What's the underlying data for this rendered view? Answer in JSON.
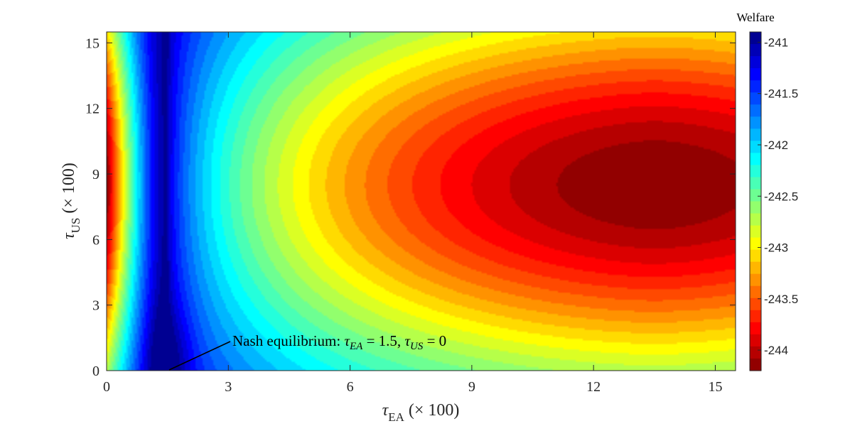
{
  "chart_data": {
    "type": "heatmap",
    "subtype": "filled-contour",
    "title": "",
    "xlabel": "τ",
    "xlabel_sub": "EA",
    "xlabel_suffix": "(× 100)",
    "ylabel": "τ",
    "ylabel_sub": "US",
    "ylabel_suffix": "(× 100)",
    "xlim": [
      0,
      15.5
    ],
    "ylim": [
      0,
      15.5
    ],
    "xticks": [
      0,
      3,
      6,
      9,
      12,
      15
    ],
    "yticks": [
      0,
      3,
      6,
      9,
      12,
      15
    ],
    "colormap": "jet-reversed",
    "colorbar": {
      "title": "Welfare",
      "range": [
        -244.2,
        -240.9
      ],
      "ticks": [
        -241,
        -241.5,
        -242,
        -242.5,
        -243,
        -243.5,
        -244
      ],
      "tick_labels": [
        "-241",
        "-241.5",
        "-242",
        "-242.5",
        "-243",
        "-243.5",
        "-244"
      ]
    },
    "surface_model": {
      "ea_minimum_at": 1.5,
      "us_optimum_at": 8.5,
      "peak_region": {
        "tau_ea": 13.5,
        "tau_us": 8.5,
        "welfare": -244.2
      },
      "left_edge_welfare_at_us_optimum": -244.2,
      "levels": 28
    },
    "annotation": {
      "text": "Nash equilibrium: ",
      "math_1_var": "τ",
      "math_1_sub": "EA",
      "math_1_rest": " = 1.5, ",
      "math_2_var": "τ",
      "math_2_sub": "US",
      "math_2_rest": " = 0",
      "point": {
        "tau_ea": 1.5,
        "tau_us": 0
      }
    }
  }
}
